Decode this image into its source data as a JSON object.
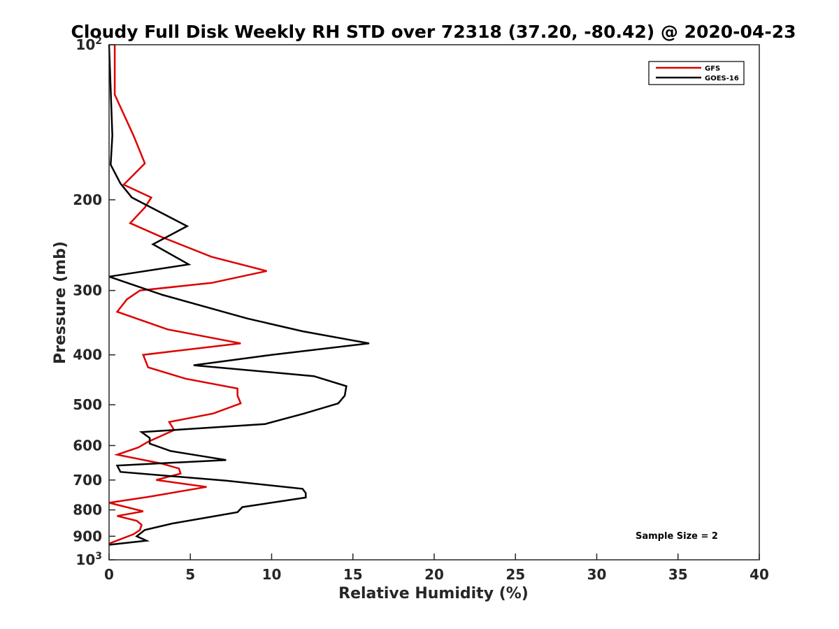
{
  "chart_data": {
    "type": "line",
    "title": "Cloudy Full Disk Weekly RH STD over 72318 (37.20, -80.42) @ 2020-04-23",
    "xlabel": "Relative Humidity (%)",
    "ylabel": "Pressure (mb)",
    "xlim": [
      0,
      40
    ],
    "ylim": [
      100,
      1000
    ],
    "yscale": "log",
    "y_reversed": true,
    "xticks": [
      0,
      5,
      10,
      15,
      20,
      25,
      30,
      35,
      40
    ],
    "xtick_labels": [
      "0",
      "5",
      "10",
      "15",
      "20",
      "25",
      "30",
      "35",
      "40"
    ],
    "yticks": [
      {
        "value": 100,
        "base": "10",
        "exp": "2"
      },
      {
        "value": 200,
        "label": "200"
      },
      {
        "value": 300,
        "label": "300"
      },
      {
        "value": 400,
        "label": "400"
      },
      {
        "value": 500,
        "label": "500"
      },
      {
        "value": 600,
        "label": "600"
      },
      {
        "value": 700,
        "label": "700"
      },
      {
        "value": 800,
        "label": "800"
      },
      {
        "value": 900,
        "label": "900"
      },
      {
        "value": 1000,
        "base": "10",
        "exp": "3"
      }
    ],
    "legend_position": "top-right",
    "annotation": "Sample Size = 2",
    "series": [
      {
        "name": "GFS",
        "color": "#dd0000",
        "points": [
          [
            0.35,
            100
          ],
          [
            0.35,
            125
          ],
          [
            1.5,
            150
          ],
          [
            2.2,
            170
          ],
          [
            0.9,
            187
          ],
          [
            2.6,
            198
          ],
          [
            2.2,
            207
          ],
          [
            1.3,
            222
          ],
          [
            3.2,
            236
          ],
          [
            6.3,
            258
          ],
          [
            9.7,
            275
          ],
          [
            6.3,
            290
          ],
          [
            1.9,
            300
          ],
          [
            1.1,
            312
          ],
          [
            0.5,
            330
          ],
          [
            3.6,
            357
          ],
          [
            8.1,
            380
          ],
          [
            2.1,
            400
          ],
          [
            2.4,
            423
          ],
          [
            4.7,
            445
          ],
          [
            7.9,
            465
          ],
          [
            7.9,
            480
          ],
          [
            8.1,
            497
          ],
          [
            6.4,
            520
          ],
          [
            3.7,
            540
          ],
          [
            4.0,
            560
          ],
          [
            2.4,
            590
          ],
          [
            1.8,
            605
          ],
          [
            0.5,
            625
          ],
          [
            3.2,
            650
          ],
          [
            4.3,
            665
          ],
          [
            4.4,
            680
          ],
          [
            2.9,
            700
          ],
          [
            6.0,
            722
          ],
          [
            2.4,
            755
          ],
          [
            0.0,
            775
          ],
          [
            2.1,
            805
          ],
          [
            0.5,
            822
          ],
          [
            1.7,
            840
          ],
          [
            2.0,
            855
          ],
          [
            1.9,
            875
          ],
          [
            1.5,
            892
          ],
          [
            0.0,
            930
          ]
        ]
      },
      {
        "name": "GOES-16",
        "color": "#000000",
        "points": [
          [
            0.0,
            100
          ],
          [
            0.2,
            150
          ],
          [
            0.1,
            171
          ],
          [
            0.7,
            186
          ],
          [
            1.4,
            198
          ],
          [
            4.8,
            225
          ],
          [
            2.7,
            244
          ],
          [
            4.9,
            267
          ],
          [
            0.0,
            282
          ],
          [
            3.3,
            306
          ],
          [
            8.5,
            340
          ],
          [
            11.9,
            360
          ],
          [
            16.0,
            380
          ],
          [
            10.0,
            400
          ],
          [
            5.2,
            419
          ],
          [
            12.6,
            440
          ],
          [
            14.6,
            460
          ],
          [
            14.5,
            480
          ],
          [
            14.1,
            497
          ],
          [
            12.0,
            520
          ],
          [
            9.6,
            545
          ],
          [
            2.0,
            565
          ],
          [
            2.5,
            580
          ],
          [
            2.5,
            595
          ],
          [
            3.8,
            615
          ],
          [
            7.2,
            640
          ],
          [
            0.5,
            656
          ],
          [
            0.7,
            675
          ],
          [
            7.2,
            702
          ],
          [
            11.9,
            728
          ],
          [
            12.1,
            742
          ],
          [
            12.1,
            757
          ],
          [
            8.2,
            790
          ],
          [
            7.9,
            808
          ],
          [
            5.8,
            830
          ],
          [
            3.9,
            850
          ],
          [
            2.2,
            875
          ],
          [
            1.7,
            900
          ],
          [
            2.3,
            918
          ],
          [
            0.0,
            935
          ]
        ]
      }
    ]
  }
}
